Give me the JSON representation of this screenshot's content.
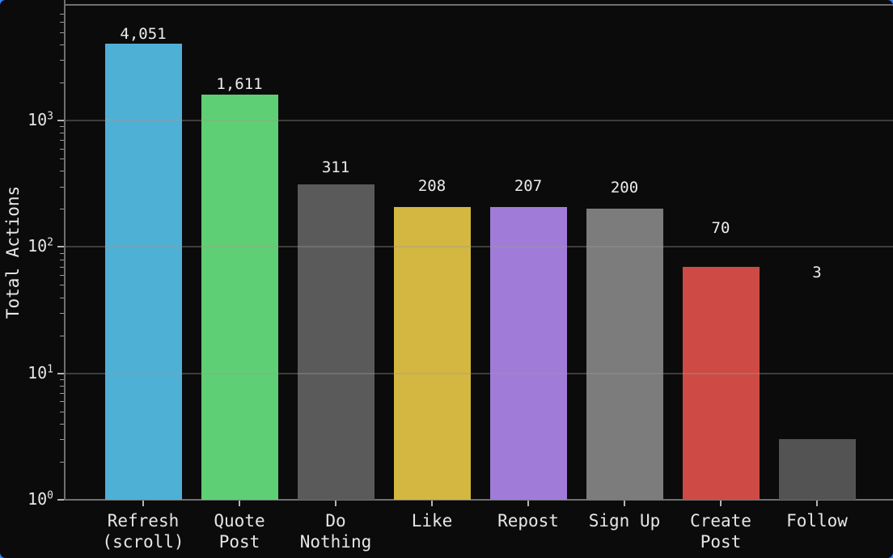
{
  "figure": {
    "background_color": "#0b0b0c",
    "corner_accent_color": "#3b82f6"
  },
  "chart_data": {
    "type": "bar",
    "title": "",
    "xlabel": "",
    "ylabel": "Total Actions",
    "yscale": "log10",
    "ylim": [
      1,
      8000
    ],
    "grid": "horizontal gridlines at powers of 10, drawn over bars",
    "legend": "none",
    "categories": [
      "Refresh (scroll)",
      "Quote Post",
      "Do Nothing",
      "Like",
      "Repost",
      "Sign Up",
      "Create Post",
      "Follow"
    ],
    "values": [
      4051,
      1611,
      311,
      208,
      207,
      200,
      70,
      3
    ],
    "value_labels": [
      "4,051",
      "1,611",
      "311",
      "208",
      "207",
      "200",
      "70",
      "3"
    ],
    "bar_colors": [
      "#4fb0d5",
      "#5ecf74",
      "#5a5a5a",
      "#d3b740",
      "#a07cd8",
      "#7c7c7c",
      "#cd4a45",
      "#535353"
    ],
    "x_tick_label_lines": [
      [
        "Refresh",
        "(scroll)"
      ],
      [
        "Quote",
        "Post"
      ],
      [
        "Do",
        "Nothing"
      ],
      [
        "Like"
      ],
      [
        "Repost"
      ],
      [
        "Sign Up"
      ],
      [
        "Create",
        "Post"
      ],
      [
        "Follow"
      ]
    ],
    "y_ticks": [
      {
        "base": "10",
        "exp": "0",
        "value": 1
      },
      {
        "base": "10",
        "exp": "1",
        "value": 10
      },
      {
        "base": "10",
        "exp": "2",
        "value": 100
      },
      {
        "base": "10",
        "exp": "3",
        "value": 1000
      }
    ]
  }
}
